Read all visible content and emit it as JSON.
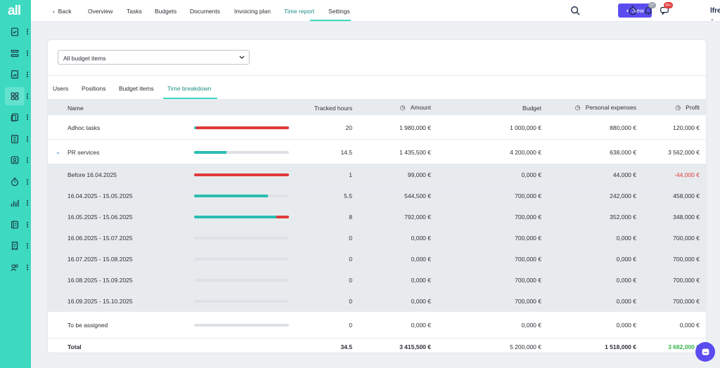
{
  "sidebar": {
    "logo": "all",
    "items": [
      {
        "icon": "clipboard-check-icon"
      },
      {
        "icon": "stack-icon"
      },
      {
        "icon": "document-chart-icon"
      },
      {
        "icon": "grid-icon",
        "active": true
      },
      {
        "icon": "clipboard-copy-icon"
      },
      {
        "icon": "building-icon"
      },
      {
        "icon": "contact-card-icon"
      },
      {
        "icon": "stopwatch-icon"
      },
      {
        "icon": "bar-chart-icon"
      },
      {
        "icon": "ledger-icon"
      },
      {
        "icon": "receipt-icon"
      },
      {
        "icon": "users-icon"
      }
    ]
  },
  "topbar": {
    "back": "Back",
    "nav": [
      "Overview",
      "Tasks",
      "Budgets",
      "Documents",
      "Invoicing plan",
      "Time report",
      "Settings"
    ],
    "active_nav": "Time report",
    "new_button": "New",
    "notification_badge": "27",
    "messages_badge": "99+",
    "brand": "lfre"
  },
  "filter": {
    "value": "All budget items"
  },
  "tabs": [
    "Users",
    "Positions",
    "Budget items",
    "Time breakdown"
  ],
  "active_tab": "Time breakdown",
  "table": {
    "columns": {
      "name": "Name",
      "hours": "Tracked hours",
      "amount": "Amount",
      "budget": "Budget",
      "expenses": "Personal expenses",
      "profit": "Profit"
    },
    "rows": [
      {
        "name": "Adhoc tasks",
        "hours": "20",
        "amount": "1 980,000 €",
        "budget": "1 000,000 €",
        "expenses": "880,000 €",
        "profit": "120,000 €",
        "progress": 0.02,
        "over": 0.98
      },
      {
        "name": "PR services",
        "hours": "14.5",
        "amount": "1 435,500 €",
        "budget": "4 200,000 €",
        "expenses": "638,000 €",
        "profit": "3 562,000 €",
        "progress": 0.34,
        "over": 0,
        "expandable": true
      },
      {
        "name": "Before 16.04.2025",
        "hours": "1",
        "amount": "99,000 €",
        "budget": "0,000 €",
        "expenses": "44,000 €",
        "profit": "-44,000 €",
        "progress": 0,
        "over": 1,
        "sub": true,
        "profit_negative": true
      },
      {
        "name": "16.04.2025 - 15.05.2025",
        "hours": "5.5",
        "amount": "544,500 €",
        "budget": "700,000 €",
        "expenses": "242,000 €",
        "profit": "458,000 €",
        "progress": 0.78,
        "over": 0,
        "sub": true
      },
      {
        "name": "16.05.2025 - 15.06.2025",
        "hours": "8",
        "amount": "792,000 €",
        "budget": "700,000 €",
        "expenses": "352,000 €",
        "profit": "348,000 €",
        "progress": 0.87,
        "over": 0.13,
        "sub": true
      },
      {
        "name": "16.06.2025 - 15.07.2025",
        "hours": "0",
        "amount": "0,000 €",
        "budget": "700,000 €",
        "expenses": "0,000 €",
        "profit": "700,000 €",
        "progress": 0,
        "over": 0,
        "sub": true
      },
      {
        "name": "16.07.2025 - 15.08.2025",
        "hours": "0",
        "amount": "0,000 €",
        "budget": "700,000 €",
        "expenses": "0,000 €",
        "profit": "700,000 €",
        "progress": 0,
        "over": 0,
        "sub": true
      },
      {
        "name": "16.08.2025 - 15.09.2025",
        "hours": "0",
        "amount": "0,000 €",
        "budget": "700,000 €",
        "expenses": "0,000 €",
        "profit": "700,000 €",
        "progress": 0,
        "over": 0,
        "sub": true
      },
      {
        "name": "16.09.2025 - 15.10.2025",
        "hours": "0",
        "amount": "0,000 €",
        "budget": "700,000 €",
        "expenses": "0,000 €",
        "profit": "700,000 €",
        "progress": 0,
        "over": 0,
        "sub": true
      },
      {
        "name": "To be assigned",
        "hours": "0",
        "amount": "0,000 €",
        "budget": "0,000 €",
        "expenses": "0,000 €",
        "profit": "0,000 €",
        "progress": 0,
        "over": 0
      }
    ],
    "total": {
      "name": "Total",
      "hours": "34.5",
      "amount": "3 415,500 €",
      "budget": "5 200,000 €",
      "expenses": "1 518,000 €",
      "profit": "3 682,000 €"
    }
  },
  "colors": {
    "accent": "#3dd9c1",
    "progress": "#2bbdb3",
    "over": "#e03a3a",
    "primary": "#5b4cf0"
  }
}
